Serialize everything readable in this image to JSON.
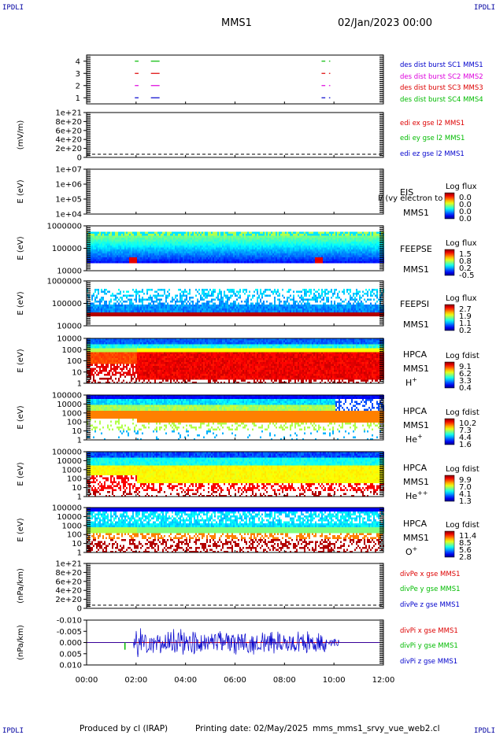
{
  "corner_label": "IPDLI",
  "header": {
    "spacecraft": "MMS1",
    "datetime": "02/Jan/2023 00:00"
  },
  "footer": {
    "produced_by": "Produced by cl (IRAP)",
    "printing_date": "Printing date: 02/May/2025",
    "script": "mms_mms1_srvy_vue_web2.cl"
  },
  "chart_data": {
    "type": "multipanel-timeseries",
    "x_ticks": [
      "00:00",
      "02:00",
      "04:00",
      "06:00",
      "08:00",
      "10:00",
      "12:00"
    ],
    "x_range_hours": [
      0,
      12
    ],
    "panels": [
      {
        "id": "burst",
        "type": "line",
        "y_ticks": [
          "1",
          "2",
          "3",
          "4"
        ],
        "ylim": [
          0.5,
          4.5
        ],
        "legend": [
          "des dist burst SC1 MMS1",
          "des dist burst SC2 MMS2",
          "des dist burst SC3 MMS3",
          "des dist burst SC4 MMS4"
        ],
        "colors": [
          "#0000cc",
          "#dd00dd",
          "#dd0000",
          "#00bb00"
        ],
        "segments": [
          {
            "level": 1,
            "intervals": [
              [
                1.95,
                2.1
              ],
              [
                2.6,
                2.95
              ],
              [
                9.5,
                9.65
              ],
              [
                9.8,
                9.85
              ]
            ]
          },
          {
            "level": 2,
            "intervals": [
              [
                1.95,
                2.1
              ],
              [
                2.6,
                2.95
              ],
              [
                9.5,
                9.65
              ],
              [
                9.8,
                9.85
              ]
            ]
          },
          {
            "level": 3,
            "intervals": [
              [
                1.95,
                2.1
              ],
              [
                2.6,
                2.95
              ],
              [
                9.5,
                9.65
              ],
              [
                9.8,
                9.85
              ]
            ]
          },
          {
            "level": 4,
            "intervals": [
              [
                1.95,
                2.1
              ],
              [
                2.6,
                2.95
              ],
              [
                9.5,
                9.65
              ],
              [
                9.8,
                9.85
              ]
            ]
          }
        ]
      },
      {
        "id": "edi",
        "type": "line",
        "ylabel": "(mV/m)",
        "y_ticks": [
          "0",
          "2e+20",
          "4e+20",
          "6e+20",
          "8e+20",
          "1e+21"
        ],
        "legend": [
          "edi ex gse l2 MMS1",
          "edi ey gse l2 MMS1",
          "edi ez gse l2 MMS1"
        ],
        "colors": [
          "#dd0000",
          "#00bb00",
          "#0000cc"
        ]
      },
      {
        "id": "eis",
        "type": "spectrogram",
        "ylabel": "E (eV)",
        "y_ticks": [
          "1e+04",
          "1e+05",
          "1e+06",
          "1e+07"
        ],
        "label": [
          "EIS",
          "MMS1"
        ],
        "overlay": "l/ (vy electron to",
        "colorbar_title": "Log flux",
        "colorbar_ticks": [
          "0.0",
          "0.0",
          "0.0",
          "0.0"
        ]
      },
      {
        "id": "feepse",
        "type": "spectrogram",
        "ylabel": "E (eV)",
        "y_ticks": [
          "1000000",
          "100000",
          "10000"
        ],
        "label": [
          "FEEPSE",
          "MMS1"
        ],
        "colorbar_title": "Log flux",
        "colorbar_ticks": [
          "1.5",
          "0.8",
          "0.2",
          "-0.5"
        ]
      },
      {
        "id": "feepsi",
        "type": "spectrogram",
        "ylabel": "E (eV)",
        "y_ticks": [
          "1000000",
          "100000",
          "10000"
        ],
        "label": [
          "FEEPSI",
          "MMS1"
        ],
        "colorbar_title": "Log flux",
        "colorbar_ticks": [
          "2.7",
          "1.9",
          "1.1",
          "0.2"
        ]
      },
      {
        "id": "hpca-h",
        "type": "spectrogram",
        "ylabel": "E (eV)",
        "y_ticks": [
          "10000",
          "1000",
          "100",
          "10",
          "1"
        ],
        "label": [
          "HPCA",
          "MMS1"
        ],
        "species": "H",
        "charge": "+",
        "colorbar_title": "Log fdist",
        "colorbar_ticks": [
          "9.1",
          "6.2",
          "3.3",
          "0.4"
        ]
      },
      {
        "id": "hpca-he",
        "type": "spectrogram",
        "ylabel": "E (eV)",
        "y_ticks": [
          "100000",
          "10000",
          "1000",
          "100",
          "10",
          "1"
        ],
        "label": [
          "HPCA",
          "MMS1"
        ],
        "species": "He",
        "charge": "+",
        "colorbar_title": "Log fdist",
        "colorbar_ticks": [
          "10.2",
          "7.3",
          "4.4",
          "1.6"
        ]
      },
      {
        "id": "hpca-he2",
        "type": "spectrogram",
        "ylabel": "E (eV)",
        "y_ticks": [
          "100000",
          "10000",
          "1000",
          "100",
          "10",
          "1"
        ],
        "label": [
          "HPCA",
          "MMS1"
        ],
        "species": "He",
        "charge": "++",
        "colorbar_title": "Log fdist",
        "colorbar_ticks": [
          "9.9",
          "7.0",
          "4.1",
          "1.3"
        ]
      },
      {
        "id": "hpca-o",
        "type": "spectrogram",
        "ylabel": "E (eV)",
        "y_ticks": [
          "100000",
          "10000",
          "1000",
          "100",
          "10",
          "1"
        ],
        "label": [
          "HPCA",
          "MMS1"
        ],
        "species": "O",
        "charge": "+",
        "colorbar_title": "Log fdist",
        "colorbar_ticks": [
          "11.4",
          "8.5",
          "5.6",
          "2.8"
        ]
      },
      {
        "id": "divpe",
        "type": "line",
        "ylabel": "(nPa/km)",
        "y_ticks": [
          "0",
          "2e+20",
          "4e+20",
          "6e+20",
          "8e+20",
          "1e+21"
        ],
        "legend": [
          "divPe x gse MMS1",
          "divPe y gse MMS1",
          "divPe z gse MMS1"
        ],
        "colors": [
          "#dd0000",
          "#00bb00",
          "#0000cc"
        ]
      },
      {
        "id": "divpi",
        "type": "line",
        "ylabel": "(nPa/km)",
        "y_ticks": [
          "0.010",
          "0.005",
          "0.000",
          "-0.005",
          "-0.010"
        ],
        "ylim": [
          -0.0125,
          0.0125
        ],
        "legend": [
          "divPi x gse MMS1",
          "divPi y gse MMS1",
          "divPi z gse MMS1"
        ],
        "colors": [
          "#dd0000",
          "#00bb00",
          "#0000cc"
        ]
      }
    ]
  }
}
